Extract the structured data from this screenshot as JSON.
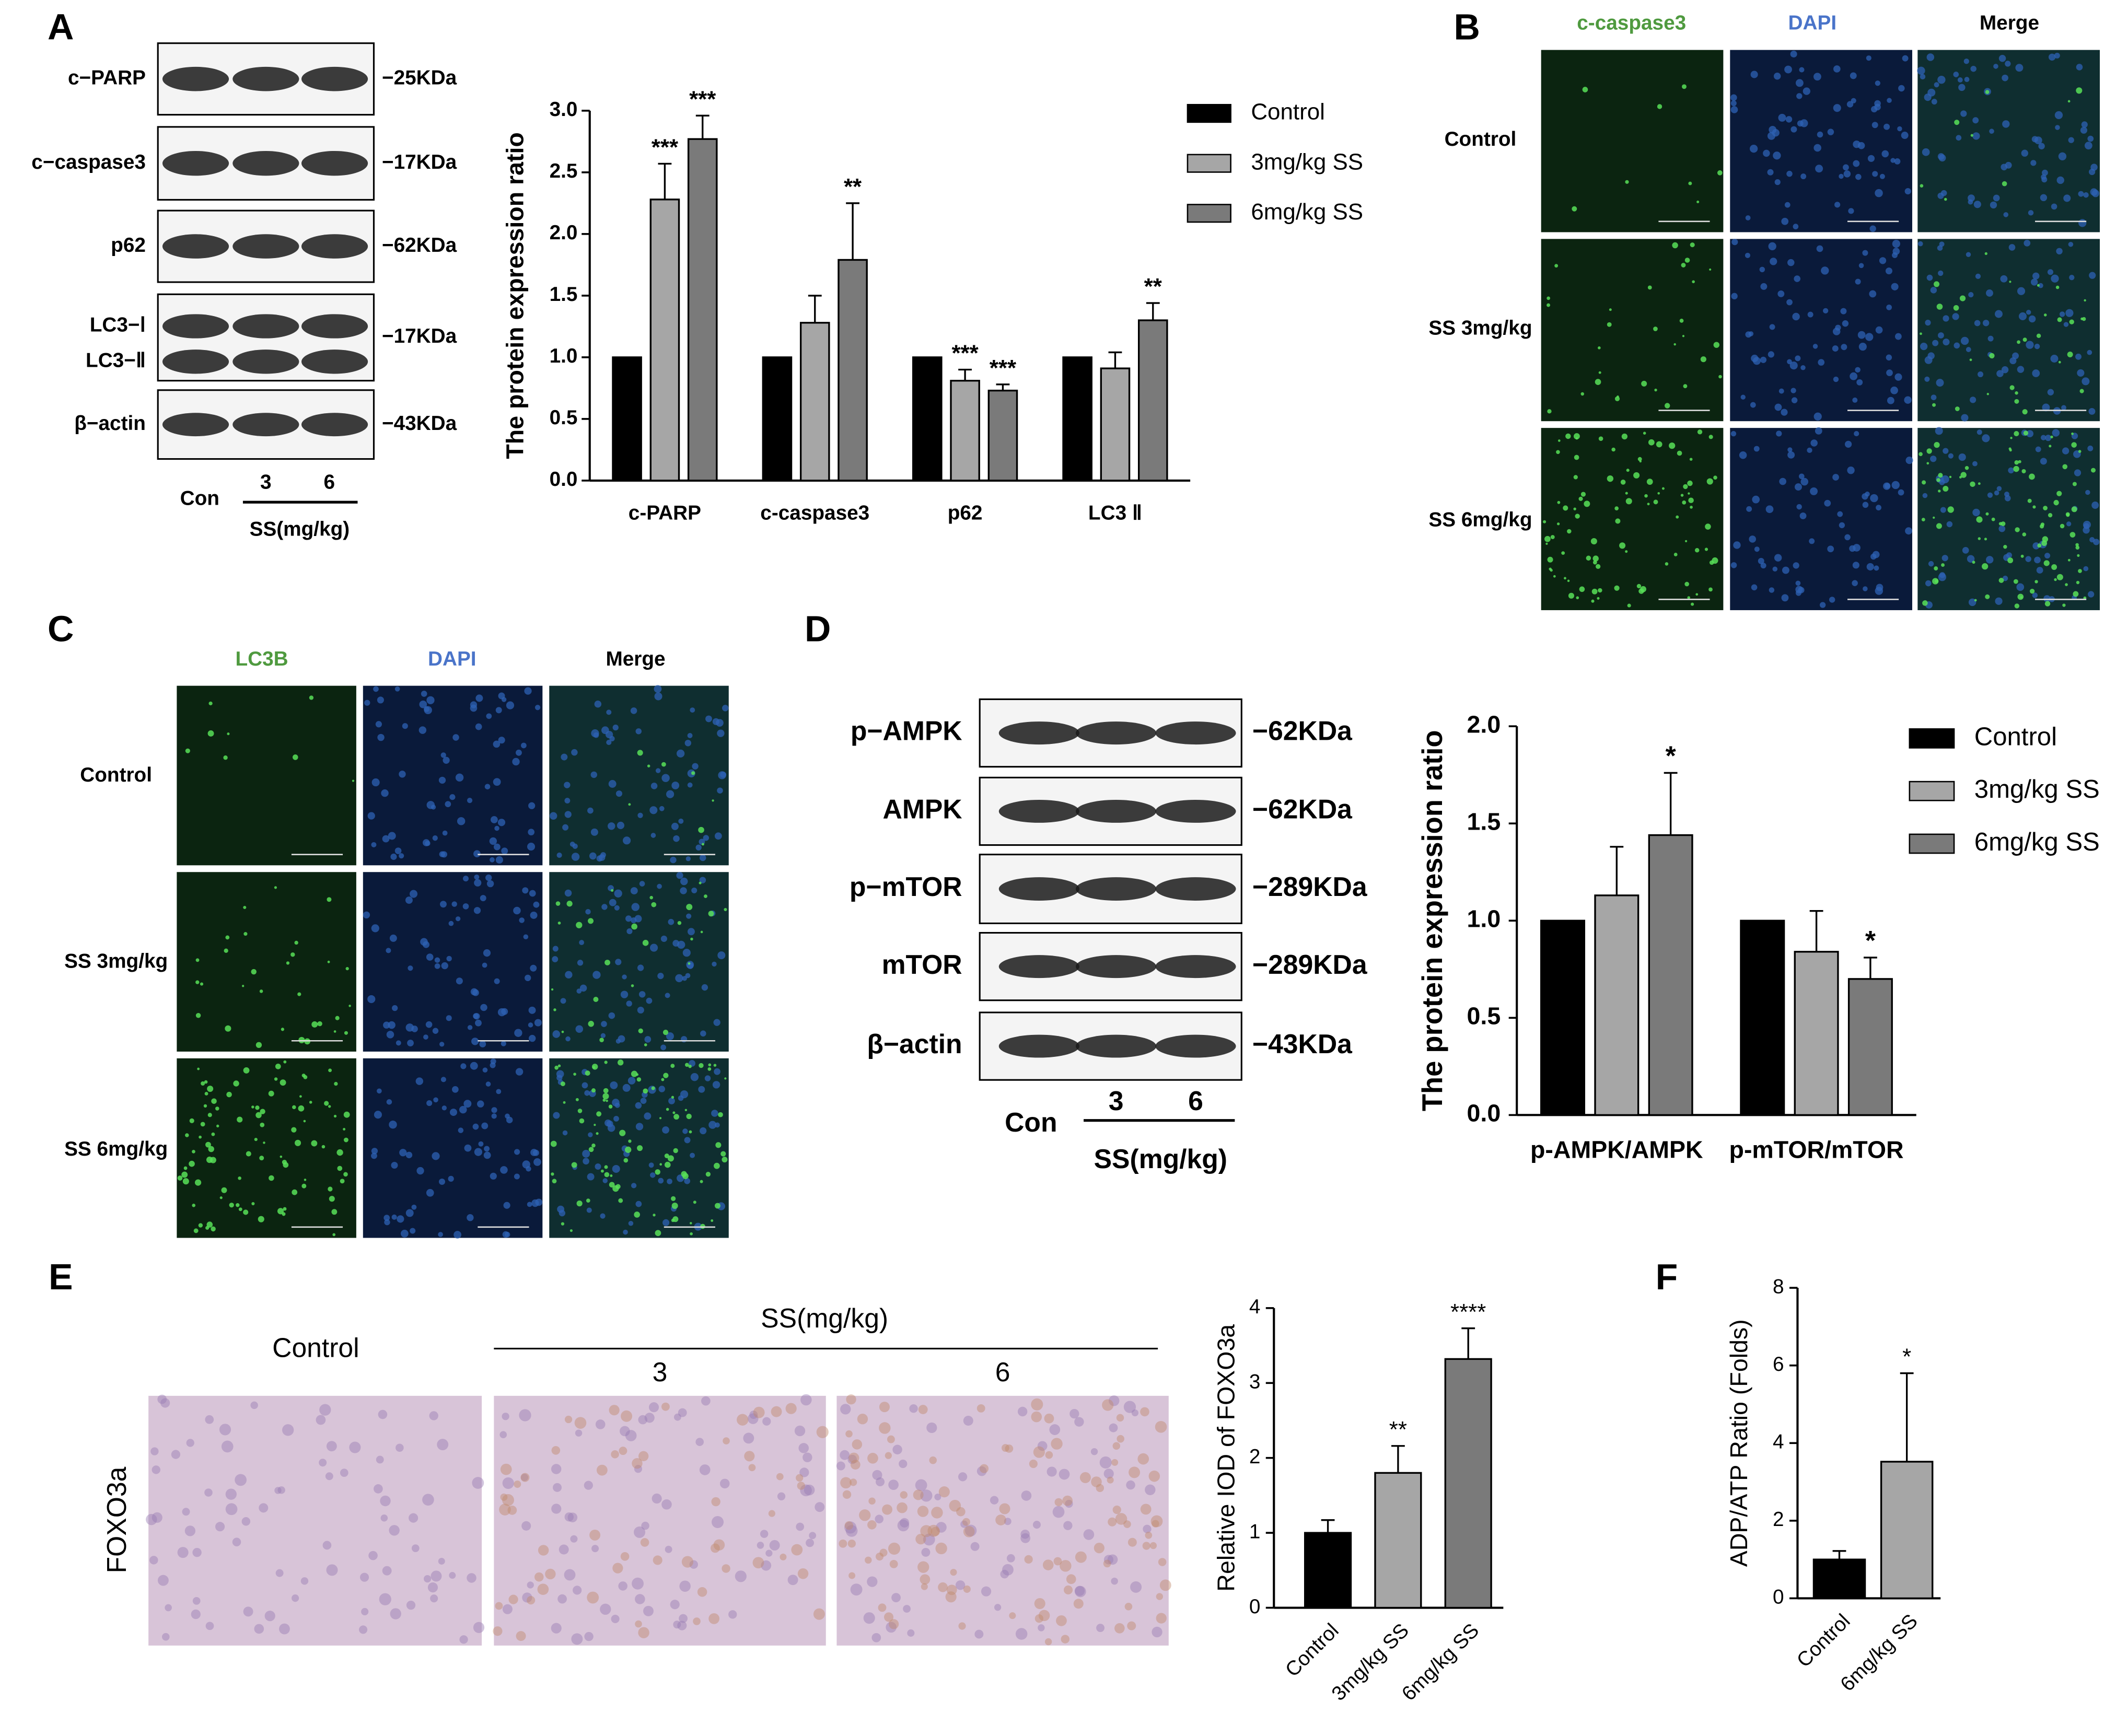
{
  "figure_labels": [
    "A",
    "B",
    "C",
    "D",
    "E",
    "F"
  ],
  "blots": {
    "A": {
      "rows": [
        {
          "labels": [
            "c−PARP"
          ],
          "size": "−25KDa"
        },
        {
          "labels": [
            "c−caspase3"
          ],
          "size": "−17KDa"
        },
        {
          "labels": [
            "p62"
          ],
          "size": "−62KDa"
        },
        {
          "labels": [
            "LC3−Ⅰ",
            "LC3−Ⅱ"
          ],
          "size": "−17KDa"
        },
        {
          "labels": [
            "β−actin"
          ],
          "size": "−43KDa"
        }
      ],
      "lanes": [
        "Con",
        "3",
        "6"
      ],
      "group": "SS(mg/kg)"
    },
    "D": {
      "rows": [
        {
          "labels": [
            "p−AMPK"
          ],
          "size": "−62KDa"
        },
        {
          "labels": [
            "AMPK"
          ],
          "size": "−62KDa"
        },
        {
          "labels": [
            "p−mTOR"
          ],
          "size": "−289KDa"
        },
        {
          "labels": [
            "mTOR"
          ],
          "size": "−289KDa"
        },
        {
          "labels": [
            "β−actin"
          ],
          "size": "−43KDa"
        }
      ],
      "lanes": [
        "Con",
        "3",
        "6"
      ],
      "group": "SS(mg/kg)"
    }
  },
  "micrographs": {
    "B": {
      "columns": [
        "c-caspase3",
        "DAPI",
        "Merge"
      ],
      "rows": [
        "Control",
        "SS 3mg/kg",
        "SS 6mg/kg"
      ]
    },
    "C": {
      "columns": [
        "LC3B",
        "DAPI",
        "Merge"
      ],
      "rows": [
        "Control",
        "SS 3mg/kg",
        "SS 6mg/kg"
      ]
    },
    "E": {
      "columns": [
        "Control",
        "3",
        "6"
      ],
      "group": "SS(mg/kg)",
      "stain": "FOXO3a"
    }
  },
  "chart_data": [
    {
      "type": "bar",
      "ylabel": "The protein expression ratio",
      "categories": [
        "c-PARP",
        "c-caspase3",
        "p62",
        "LC3 Ⅱ"
      ],
      "series": [
        {
          "name": "Control",
          "color": "#000000",
          "values": [
            1,
            1,
            1,
            1
          ]
        },
        {
          "name": "3mg/kg SS",
          "color": "#a6a6a6",
          "values": [
            2.28,
            1.28,
            0.81,
            0.91
          ],
          "errors": [
            0.29,
            0.22,
            0.09,
            0.13
          ],
          "significance": [
            "***",
            null,
            "***",
            null
          ]
        },
        {
          "name": "6mg/kg SS",
          "color": "#7a7a7a",
          "values": [
            2.77,
            1.79,
            0.73,
            1.3
          ],
          "errors": [
            0.19,
            0.46,
            0.05,
            0.14
          ],
          "significance": [
            "***",
            "**",
            "***",
            "**"
          ]
        }
      ],
      "ylim": [
        0,
        3
      ],
      "yticks": [
        {
          "value": 0,
          "label": "0.0"
        },
        {
          "value": 0.5,
          "label": "0.5"
        },
        {
          "value": 1,
          "label": "1.0"
        },
        {
          "value": 1.5,
          "label": "1.5"
        },
        {
          "value": 2,
          "label": "2.0"
        },
        {
          "value": 2.5,
          "label": "2.5"
        },
        {
          "value": 3,
          "label": "3.0"
        }
      ]
    },
    {
      "type": "bar",
      "ylabel": "The protein expression ratio",
      "categories": [
        "p-AMPK/AMPK",
        "p-mTOR/mTOR"
      ],
      "series": [
        {
          "name": "Control",
          "color": "#000000",
          "values": [
            1,
            1
          ]
        },
        {
          "name": "3mg/kg SS",
          "color": "#a6a6a6",
          "values": [
            1.13,
            0.84
          ],
          "errors": [
            0.25,
            0.21
          ]
        },
        {
          "name": "6mg/kg SS",
          "color": "#7a7a7a",
          "values": [
            1.44,
            0.7
          ],
          "errors": [
            0.32,
            0.11
          ],
          "significance": [
            "*",
            "*"
          ]
        }
      ],
      "ylim": [
        0,
        2
      ],
      "yticks": [
        {
          "value": 0,
          "label": "0.0"
        },
        {
          "value": 0.5,
          "label": "0.5"
        },
        {
          "value": 1,
          "label": "1.0"
        },
        {
          "value": 1.5,
          "label": "1.5"
        },
        {
          "value": 2,
          "label": "2.0"
        }
      ]
    },
    {
      "type": "bar",
      "ylabel": "Relative IOD of FOXO3a",
      "categories": [
        "Control",
        "3mg/kg SS",
        "6mg/kg SS"
      ],
      "values": [
        1,
        1.8,
        3.32
      ],
      "errors": [
        0.17,
        0.36,
        0.41
      ],
      "colors": [
        "#000000",
        "#a6a6a6",
        "#7a7a7a"
      ],
      "significance": [
        null,
        "**",
        "****"
      ],
      "ylim": [
        0,
        4
      ],
      "yticks": [
        0,
        1,
        2,
        3,
        4
      ]
    },
    {
      "type": "bar",
      "ylabel": "ADP/ATP Ratio (Folds)",
      "categories": [
        "Control",
        "6mg/kg SS"
      ],
      "values": [
        1,
        3.52
      ],
      "errors": [
        0.22,
        2.28
      ],
      "colors": [
        "#000000",
        "#a6a6a6"
      ],
      "significance": [
        null,
        "*"
      ],
      "ylim": [
        0,
        8
      ],
      "yticks": [
        0,
        2,
        4,
        6,
        8
      ]
    }
  ]
}
